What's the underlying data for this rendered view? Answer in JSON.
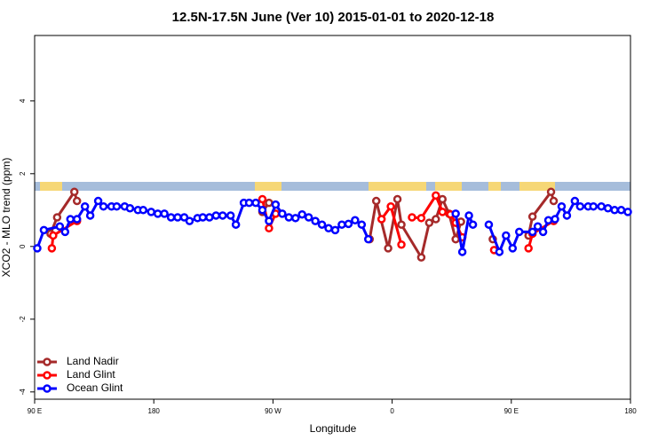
{
  "chart_data": {
    "type": "line",
    "title": "12.5N-17.5N June (Ver 10)   2015-01-01 to 2020-12-18",
    "x_label": "Longitude",
    "y_label": "XCO2 - MLO trend (ppm)",
    "xlim": [
      90,
      540
    ],
    "xticks": [
      {
        "value": 90,
        "label": "90 E"
      },
      180,
      {
        "value": 270,
        "label": "90 W"
      },
      {
        "value": 360,
        "label": "0"
      },
      {
        "value": 450,
        "label": "90 E"
      },
      180
    ],
    "ylim": [
      -4.2,
      5.8
    ],
    "yticks": [
      -4,
      -2,
      0,
      2,
      4
    ],
    "legend": "bottom-left",
    "series": [
      {
        "name": "Land Nadir",
        "color": "#a52a2a",
        "x": [
          102,
          107,
          120,
          122,
          200,
          262,
          267,
          300,
          343,
          348,
          357,
          364,
          367,
          382,
          388,
          393,
          398,
          403,
          408,
          412,
          420,
          436,
          450,
          463,
          466,
          480,
          482
        ],
        "values": [
          0.35,
          0.8,
          1.5,
          1.25,
          null,
          0.95,
          1.2,
          null,
          0.2,
          1.25,
          -0.05,
          1.3,
          0.6,
          -0.3,
          0.65,
          0.75,
          1.3,
          0.9,
          0.2,
          0.68,
          null,
          0.2,
          null,
          0.3,
          0.82,
          1.5,
          1.25
        ]
      },
      {
        "name": "Land Glint",
        "color": "#ff0000",
        "x": [
          103,
          104,
          122,
          200,
          262,
          267,
          272,
          300,
          352,
          359,
          367,
          370,
          375,
          382,
          393,
          398,
          404,
          408,
          413,
          420,
          437,
          450,
          463,
          466,
          482
        ],
        "values": [
          -0.05,
          0.3,
          0.7,
          null,
          1.3,
          0.5,
          0.9,
          null,
          0.75,
          1.1,
          0.05,
          null,
          0.8,
          0.78,
          1.4,
          0.95,
          0.88,
          0.65,
          0.25,
          null,
          -0.1,
          null,
          -0.05,
          0.35,
          0.7
        ]
      },
      {
        "name": "Ocean Glint",
        "color": "#0000ff",
        "x": [
          92,
          97,
          109,
          113,
          117,
          122,
          128,
          132,
          138,
          142,
          148,
          152,
          158,
          162,
          168,
          172,
          178,
          183,
          188,
          193,
          198,
          203,
          207,
          213,
          217,
          222,
          227,
          232,
          238,
          242,
          248,
          252,
          257,
          262,
          267,
          272,
          277,
          282,
          287,
          292,
          297,
          302,
          307,
          312,
          317,
          322,
          327,
          332,
          337,
          342,
          375,
          408,
          413,
          418,
          421,
          427,
          433,
          441,
          446,
          451,
          456,
          466,
          470,
          474,
          478,
          483,
          488,
          492,
          498,
          502,
          508,
          512,
          518,
          523,
          528,
          533,
          538
        ],
        "values": [
          -0.05,
          0.45,
          0.55,
          0.4,
          0.75,
          0.75,
          1.1,
          0.85,
          1.25,
          1.1,
          1.1,
          1.1,
          1.1,
          1.05,
          1.0,
          1.0,
          0.95,
          0.9,
          0.9,
          0.8,
          0.8,
          0.8,
          0.7,
          0.78,
          0.8,
          0.8,
          0.85,
          0.85,
          0.85,
          0.6,
          1.2,
          1.2,
          1.2,
          1.0,
          0.7,
          1.15,
          0.9,
          0.8,
          0.78,
          0.88,
          0.8,
          0.7,
          0.6,
          0.5,
          0.45,
          0.6,
          0.62,
          0.72,
          0.6,
          0.2,
          null,
          0.9,
          -0.15,
          0.85,
          0.6,
          null,
          0.6,
          -0.15,
          0.3,
          -0.05,
          0.4,
          0.4,
          0.55,
          0.4,
          0.72,
          0.75,
          1.1,
          0.85,
          1.25,
          1.1,
          1.1,
          1.1,
          1.1,
          1.05,
          1.0,
          1.0,
          0.95
        ]
      }
    ]
  }
}
